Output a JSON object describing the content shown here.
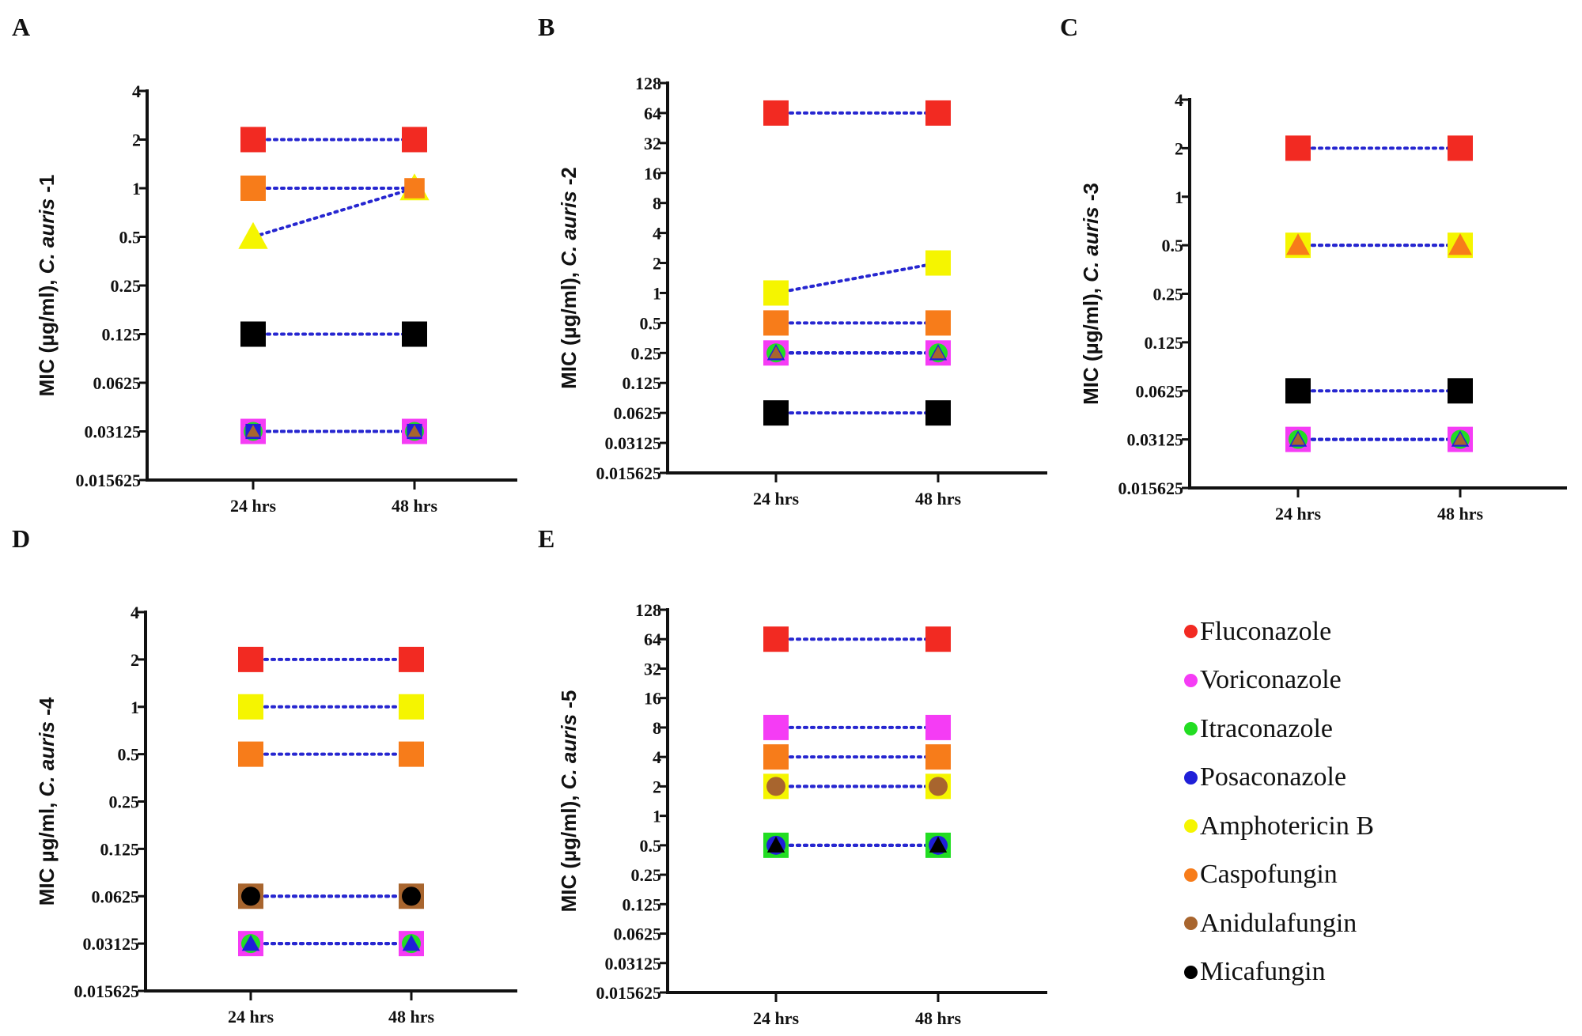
{
  "chart_data": [
    {
      "type": "scatter",
      "panel_label": "A",
      "ylabel_prefix": "MIC (µg/ml), ",
      "ylabel_italic": "C. auris",
      "ylabel_suffix": " -1",
      "y_scale": "log2",
      "ylim": [
        0.015625,
        4
      ],
      "yticks": [
        "0.015625",
        "0.03125",
        "0.0625",
        "0.125",
        "0.25",
        "0.5",
        "1",
        "2",
        "4"
      ],
      "categories": [
        "24 hrs",
        "48 hrs"
      ],
      "series": [
        {
          "drug": "Fluconazole",
          "marker": "square",
          "values": [
            2,
            2
          ]
        },
        {
          "drug": "Amphotericin B",
          "marker": "triangle",
          "values": [
            0.5,
            1
          ]
        },
        {
          "drug": "Caspofungin",
          "marker": "square",
          "values": [
            1,
            1
          ]
        },
        {
          "drug": "Micafungin",
          "marker": "square",
          "values": [
            0.125,
            0.125
          ]
        },
        {
          "drug": "Voriconazole",
          "marker": "square",
          "values": [
            0.03125,
            0.03125
          ]
        },
        {
          "drug": "Itraconazole",
          "marker": "circle",
          "values": [
            0.03125,
            0.03125
          ]
        },
        {
          "drug": "Posaconazole",
          "marker": "square",
          "values": [
            0.03125,
            0.03125
          ]
        },
        {
          "drug": "Anidulafungin",
          "marker": "triangle",
          "values": [
            0.03125,
            0.03125
          ]
        }
      ]
    },
    {
      "type": "scatter",
      "panel_label": "B",
      "ylabel_prefix": "MIC (µg/ml), ",
      "ylabel_italic": "C. auris",
      "ylabel_suffix": " -2",
      "y_scale": "log2",
      "ylim": [
        0.015625,
        128
      ],
      "yticks": [
        "0.015625",
        "0.03125",
        "0.0625",
        "0.125",
        "0.25",
        "0.5",
        "1",
        "2",
        "4",
        "8",
        "16",
        "32",
        "64",
        "128"
      ],
      "categories": [
        "24 hrs",
        "48 hrs"
      ],
      "series": [
        {
          "drug": "Fluconazole",
          "marker": "square",
          "values": [
            64,
            64
          ]
        },
        {
          "drug": "Amphotericin B",
          "marker": "square",
          "values": [
            1,
            2
          ]
        },
        {
          "drug": "Caspofungin",
          "marker": "square",
          "values": [
            0.5,
            0.5
          ]
        },
        {
          "drug": "Voriconazole",
          "marker": "square",
          "values": [
            0.25,
            0.25
          ]
        },
        {
          "drug": "Itraconazole",
          "marker": "circle",
          "values": [
            0.25,
            0.25
          ]
        },
        {
          "drug": "Posaconazole",
          "marker": "triangle",
          "values": [
            0.25,
            0.25
          ]
        },
        {
          "drug": "Anidulafungin",
          "marker": "triangle",
          "values": [
            0.25,
            0.25
          ]
        },
        {
          "drug": "Micafungin",
          "marker": "square",
          "values": [
            0.0625,
            0.0625
          ]
        }
      ]
    },
    {
      "type": "scatter",
      "panel_label": "C",
      "ylabel_prefix": "MIC (µg/ml), ",
      "ylabel_italic": "C. auris",
      "ylabel_suffix": " -3",
      "y_scale": "log2",
      "ylim": [
        0.015625,
        4
      ],
      "yticks": [
        "0.015625",
        "0.03125",
        "0.0625",
        "0.125",
        "0.25",
        "0.5",
        "1",
        "2",
        "4"
      ],
      "categories": [
        "24 hrs",
        "48 hrs"
      ],
      "series": [
        {
          "drug": "Fluconazole",
          "marker": "square",
          "values": [
            2,
            2
          ]
        },
        {
          "drug": "Amphotericin B",
          "marker": "square",
          "values": [
            0.5,
            0.5
          ]
        },
        {
          "drug": "Caspofungin",
          "marker": "triangle",
          "values": [
            0.5,
            0.5
          ]
        },
        {
          "drug": "Micafungin",
          "marker": "square",
          "values": [
            0.0625,
            0.0625
          ]
        },
        {
          "drug": "Voriconazole",
          "marker": "square",
          "values": [
            0.03125,
            0.03125
          ]
        },
        {
          "drug": "Itraconazole",
          "marker": "circle",
          "values": [
            0.03125,
            0.03125
          ]
        },
        {
          "drug": "Posaconazole",
          "marker": "triangle",
          "values": [
            0.03125,
            0.03125
          ]
        },
        {
          "drug": "Anidulafungin",
          "marker": "triangle",
          "values": [
            0.03125,
            0.03125
          ]
        }
      ]
    },
    {
      "type": "scatter",
      "panel_label": "D",
      "ylabel_prefix": "MIC µg/ml, ",
      "ylabel_italic": "C. auris",
      "ylabel_suffix": " -4",
      "y_scale": "log2",
      "ylim": [
        0.015625,
        4
      ],
      "yticks": [
        "0.015625",
        "0.03125",
        "0.0625",
        "0.125",
        "0.25",
        "0.5",
        "1",
        "2",
        "4"
      ],
      "categories": [
        "24 hrs",
        "48 hrs"
      ],
      "series": [
        {
          "drug": "Fluconazole",
          "marker": "square",
          "values": [
            2,
            2
          ]
        },
        {
          "drug": "Amphotericin B",
          "marker": "square",
          "values": [
            1,
            1
          ]
        },
        {
          "drug": "Caspofungin",
          "marker": "square",
          "values": [
            0.5,
            0.5
          ]
        },
        {
          "drug": "Anidulafungin",
          "marker": "square",
          "values": [
            0.0625,
            0.0625
          ]
        },
        {
          "drug": "Micafungin",
          "marker": "circle",
          "values": [
            0.0625,
            0.0625
          ]
        },
        {
          "drug": "Voriconazole",
          "marker": "square",
          "values": [
            0.03125,
            0.03125
          ]
        },
        {
          "drug": "Itraconazole",
          "marker": "circle",
          "values": [
            0.03125,
            0.03125
          ]
        },
        {
          "drug": "Posaconazole",
          "marker": "triangle",
          "values": [
            0.03125,
            0.03125
          ]
        }
      ]
    },
    {
      "type": "scatter",
      "panel_label": "E",
      "ylabel_prefix": "MIC (µg/ml), ",
      "ylabel_italic": "C. auris",
      "ylabel_suffix": " -5",
      "y_scale": "log2",
      "ylim": [
        0.015625,
        128
      ],
      "yticks": [
        "0.015625",
        "0.03125",
        "0.0625",
        "0.125",
        "0.25",
        "0.5",
        "1",
        "2",
        "4",
        "8",
        "16",
        "32",
        "64",
        "128"
      ],
      "categories": [
        "24 hrs",
        "48 hrs"
      ],
      "series": [
        {
          "drug": "Fluconazole",
          "marker": "square",
          "values": [
            64,
            64
          ]
        },
        {
          "drug": "Voriconazole",
          "marker": "square",
          "values": [
            8,
            8
          ]
        },
        {
          "drug": "Caspofungin",
          "marker": "square",
          "values": [
            4,
            4
          ]
        },
        {
          "drug": "Amphotericin B",
          "marker": "square",
          "values": [
            2,
            2
          ]
        },
        {
          "drug": "Anidulafungin",
          "marker": "circle",
          "values": [
            2,
            2
          ]
        },
        {
          "drug": "Itraconazole",
          "marker": "square",
          "values": [
            0.5,
            0.5
          ]
        },
        {
          "drug": "Posaconazole",
          "marker": "circle",
          "values": [
            0.5,
            0.5
          ]
        },
        {
          "drug": "Micafungin",
          "marker": "triangle",
          "values": [
            0.5,
            0.5
          ]
        }
      ]
    }
  ],
  "connector_color": "#2626d0",
  "legend": {
    "placement": "bottom-right",
    "items": [
      {
        "label": "Fluconazole",
        "color": "#f22a22"
      },
      {
        "label": "Voriconazole",
        "color": "#f53cf5"
      },
      {
        "label": "Itraconazole",
        "color": "#22dd22"
      },
      {
        "label": "Posaconazole",
        "color": "#1f1fd8"
      },
      {
        "label": "Amphotericin B",
        "color": "#f5f500"
      },
      {
        "label": "Caspofungin",
        "color": "#f77c1a"
      },
      {
        "label": "Anidulafungin",
        "color": "#a8652e"
      },
      {
        "label": "Micafungin",
        "color": "#000000"
      }
    ]
  }
}
